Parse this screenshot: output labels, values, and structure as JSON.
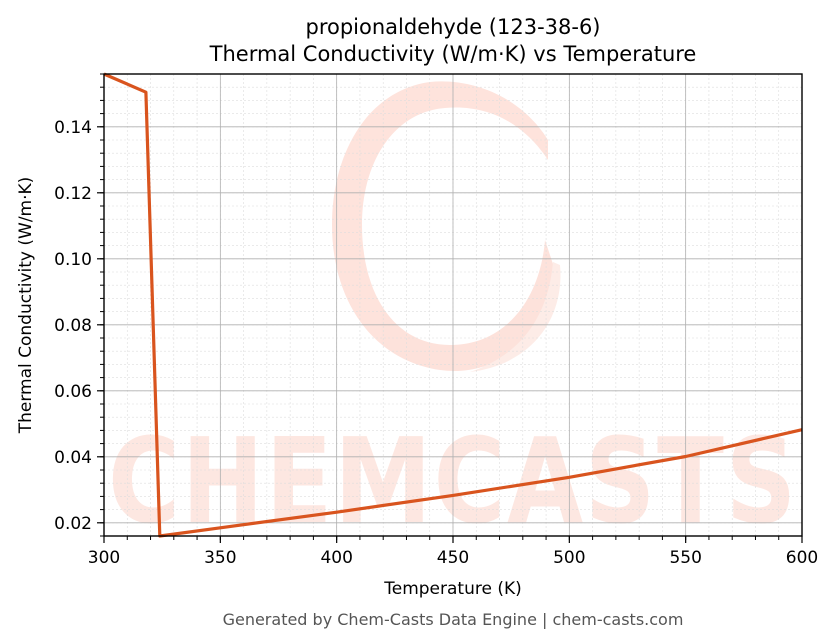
{
  "chart_data": {
    "type": "line",
    "title": "propionaldehyde (123-38-6)",
    "subtitle": "Thermal Conductivity (W/m·K) vs Temperature",
    "xlabel": "Temperature (K)",
    "ylabel": "Thermal Conductivity (W/m·K)",
    "xlim": [
      300,
      600
    ],
    "ylim": [
      0.016,
      0.156
    ],
    "x_ticks": [
      300,
      350,
      400,
      450,
      500,
      550,
      600
    ],
    "y_ticks": [
      0.02,
      0.04,
      0.06,
      0.08,
      0.1,
      0.12,
      0.14
    ],
    "x_tick_labels": [
      "300",
      "350",
      "400",
      "450",
      "500",
      "550",
      "600"
    ],
    "y_tick_labels": [
      "0.02",
      "0.04",
      "0.06",
      "0.08",
      "0.10",
      "0.12",
      "0.14"
    ],
    "grid": true,
    "line_color": "#d9541e",
    "series": [
      {
        "x": [
          300,
          318,
          324,
          350,
          400,
          450,
          500,
          550,
          600
        ],
        "y": [
          0.156,
          0.1505,
          0.016,
          0.0185,
          0.0232,
          0.0283,
          0.0338,
          0.0401,
          0.0482
        ]
      }
    ],
    "watermark": "CHEMCASTS",
    "footer": "Generated by Chem-Casts Data Engine | chem-casts.com"
  }
}
